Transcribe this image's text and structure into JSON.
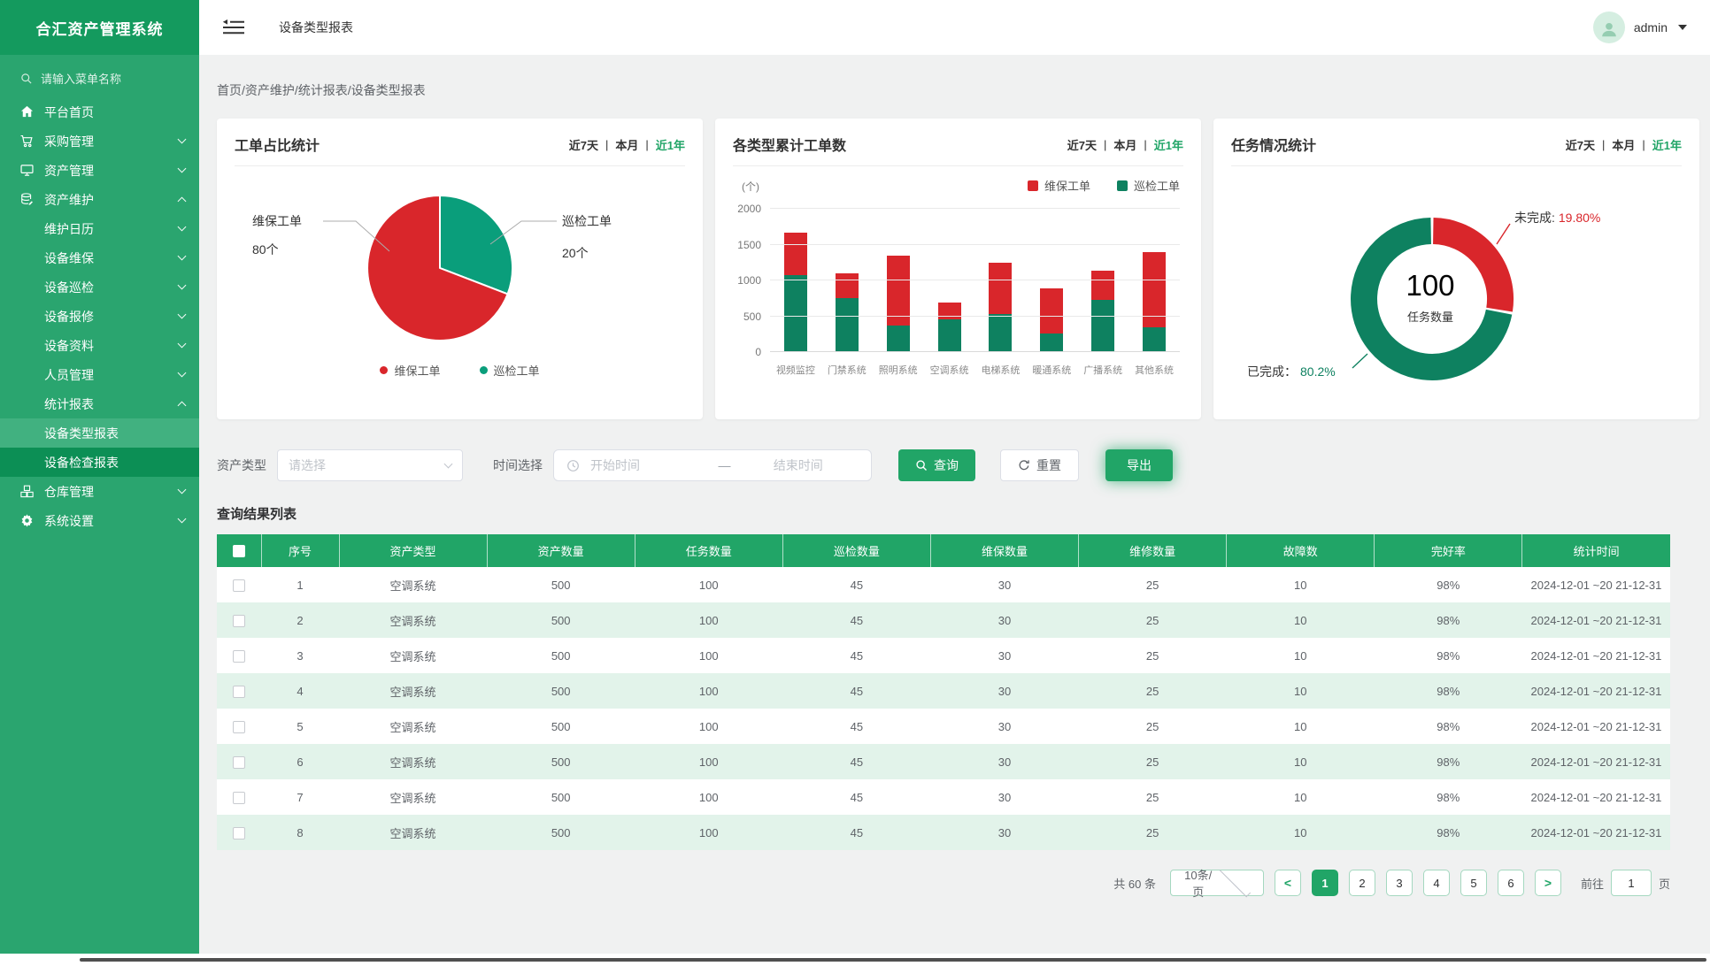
{
  "app_title": "合汇资产管理系统",
  "header": {
    "tab": "设备类型报表",
    "user": "admin"
  },
  "breadcrumb": "首页/资产维护/统计报表/设备类型报表",
  "sidebar": {
    "search_placeholder": "请输入菜单名称",
    "menu": [
      {
        "label": "平台首页",
        "icon": "home-icon"
      },
      {
        "label": "采购管理",
        "icon": "cart-icon",
        "arrow": "down"
      },
      {
        "label": "资产管理",
        "icon": "monitor-icon",
        "arrow": "down"
      },
      {
        "label": "资产维护",
        "icon": "database-icon",
        "arrow": "up",
        "children": [
          {
            "label": "维护日历",
            "arrow": "down"
          },
          {
            "label": "设备维保",
            "arrow": "down"
          },
          {
            "label": "设备巡检",
            "arrow": "down"
          },
          {
            "label": "设备报修",
            "arrow": "down"
          },
          {
            "label": "设备资料",
            "arrow": "down"
          },
          {
            "label": "人员管理",
            "arrow": "down"
          },
          {
            "label": "统计报表",
            "arrow": "up",
            "children": [
              {
                "label": "设备类型报表",
                "active": true
              },
              {
                "label": "设备检查报表"
              }
            ]
          }
        ]
      },
      {
        "label": "仓库管理",
        "icon": "boxes-icon",
        "arrow": "down"
      },
      {
        "label": "系统设置",
        "icon": "gear-icon",
        "arrow": "down"
      }
    ]
  },
  "cards": {
    "time_filters": [
      "近7天",
      "本月",
      "近1年"
    ],
    "active_filter": "近1年",
    "filter_separator": "|"
  },
  "chart_data": [
    {
      "type": "pie",
      "title": "工单占比统计",
      "series": [
        {
          "name": "维保工单",
          "value": 80,
          "label": "80个",
          "color": "#d9262b"
        },
        {
          "name": "巡检工单",
          "value": 20,
          "label": "20个",
          "color": "#0a9e7b"
        }
      ],
      "legend": [
        "维保工单",
        "巡检工单"
      ],
      "legend_position": "bottom"
    },
    {
      "type": "bar",
      "title": "各类型累计工单数",
      "stacked": true,
      "unit": "(个)",
      "categories": [
        "视频监控",
        "门禁系统",
        "照明系统",
        "空调系统",
        "电梯系统",
        "暖通系统",
        "广播系统",
        "其他系统"
      ],
      "series": [
        {
          "name": "巡检工单",
          "color": "#0e8160",
          "values": [
            1080,
            750,
            370,
            460,
            530,
            260,
            730,
            350
          ]
        },
        {
          "name": "维保工单",
          "color": "#d9262b",
          "values": [
            590,
            350,
            970,
            230,
            720,
            630,
            410,
            1050
          ]
        }
      ],
      "legend": [
        "维保工单",
        "巡检工单"
      ],
      "legend_position": "top-right",
      "ylim": [
        0,
        2000
      ],
      "yticks": [
        0,
        500,
        1000,
        1500,
        2000
      ],
      "grid": true
    },
    {
      "type": "donut",
      "title": "任务情况统计",
      "center_value": "100",
      "center_label": "任务数量",
      "series": [
        {
          "name": "未完成",
          "pct": 19.8,
          "color": "#d9262b"
        },
        {
          "name": "已完成",
          "pct": 80.2,
          "color": "#0e8160"
        }
      ],
      "annotations": [
        {
          "text": "未完成:",
          "value": "19.80%"
        },
        {
          "text": "已完成：",
          "value": "80.2%"
        }
      ]
    }
  ],
  "filters": {
    "asset_type_label": "资产类型",
    "asset_type_placeholder": "请选择",
    "time_label": "时间选择",
    "start_placeholder": "开始时间",
    "range_separator": "—",
    "end_placeholder": "结束时间",
    "search_button": "查询",
    "reset_button": "重置",
    "export_button": "导出"
  },
  "table": {
    "section_title": "查询结果列表",
    "columns": [
      "序号",
      "资产类型",
      "资产数量",
      "任务数量",
      "巡检数量",
      "维保数量",
      "维修数量",
      "故障数",
      "完好率",
      "统计时间"
    ],
    "rows": [
      [
        "1",
        "空调系统",
        "500",
        "100",
        "45",
        "30",
        "25",
        "10",
        "98%",
        "2024-12-01 ~20 21-12-31"
      ],
      [
        "2",
        "空调系统",
        "500",
        "100",
        "45",
        "30",
        "25",
        "10",
        "98%",
        "2024-12-01 ~20 21-12-31"
      ],
      [
        "3",
        "空调系统",
        "500",
        "100",
        "45",
        "30",
        "25",
        "10",
        "98%",
        "2024-12-01 ~20 21-12-31"
      ],
      [
        "4",
        "空调系统",
        "500",
        "100",
        "45",
        "30",
        "25",
        "10",
        "98%",
        "2024-12-01 ~20 21-12-31"
      ],
      [
        "5",
        "空调系统",
        "500",
        "100",
        "45",
        "30",
        "25",
        "10",
        "98%",
        "2024-12-01 ~20 21-12-31"
      ],
      [
        "6",
        "空调系统",
        "500",
        "100",
        "45",
        "30",
        "25",
        "10",
        "98%",
        "2024-12-01 ~20 21-12-31"
      ],
      [
        "7",
        "空调系统",
        "500",
        "100",
        "45",
        "30",
        "25",
        "10",
        "98%",
        "2024-12-01 ~20 21-12-31"
      ],
      [
        "8",
        "空调系统",
        "500",
        "100",
        "45",
        "30",
        "25",
        "10",
        "98%",
        "2024-12-01 ~20 21-12-31"
      ]
    ]
  },
  "pagination": {
    "total": "共 60 条",
    "page_size": "10条/页",
    "pages": [
      "1",
      "2",
      "3",
      "4",
      "5",
      "6"
    ],
    "active_page": "1",
    "goto_label": "前往",
    "goto_value": "1",
    "goto_suffix": "页"
  },
  "colors": {
    "brand_green": "#21a567",
    "sidebar_green": "#2aa56f",
    "sidebar_dark_green": "#149a5e",
    "sidebar_active": "#41b180",
    "sidebar_submenu": "#0c8f55",
    "red": "#d9262b",
    "pie_teal": "#0a9e7b",
    "bar_teal": "#0e8160",
    "row_alt": "#e2f3ea"
  }
}
